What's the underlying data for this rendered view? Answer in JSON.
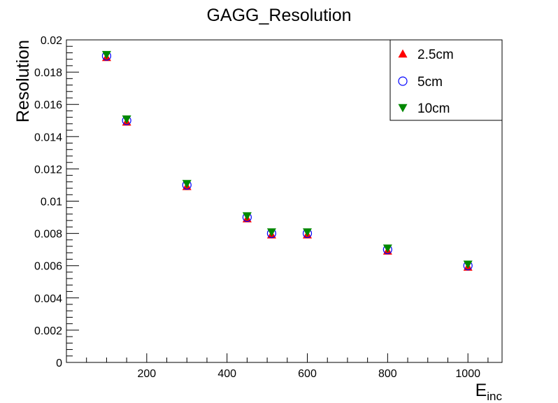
{
  "chart_data": {
    "type": "scatter",
    "title": "GAGG_Resolution",
    "xlabel": "E",
    "xlabel_subscript": "inc",
    "ylabel": "Resolution",
    "xlim": [
      0,
      1085
    ],
    "ylim": [
      0,
      0.02
    ],
    "x_ticks": [
      200,
      400,
      600,
      800,
      1000
    ],
    "x_tick_labels": [
      "200",
      "400",
      "600",
      "800",
      "1000"
    ],
    "y_ticks": [
      0,
      0.002,
      0.004,
      0.006,
      0.008,
      0.01,
      0.012,
      0.014,
      0.016,
      0.018,
      0.02
    ],
    "y_tick_labels": [
      "0",
      "0.002",
      "0.004",
      "0.006",
      "0.008",
      "0.01",
      "0.012",
      "0.014",
      "0.016",
      "0.018",
      "0.02"
    ],
    "grid": false,
    "legend_position": "top-right",
    "series": [
      {
        "name": "2.5cm",
        "marker": "triangle-up",
        "color": "#ff0000",
        "x": [
          100,
          150,
          300,
          450,
          511,
          600,
          800,
          1000
        ],
        "y": [
          0.019,
          0.015,
          0.011,
          0.009,
          0.008,
          0.008,
          0.007,
          0.006
        ]
      },
      {
        "name": "5cm",
        "marker": "open-circle",
        "color": "#0000ff",
        "x": [
          100,
          150,
          300,
          450,
          511,
          600,
          800,
          1000
        ],
        "y": [
          0.019,
          0.015,
          0.011,
          0.009,
          0.008,
          0.008,
          0.007,
          0.006
        ]
      },
      {
        "name": "10cm",
        "marker": "triangle-down",
        "color": "#008800",
        "x": [
          100,
          150,
          300,
          450,
          511,
          600,
          800,
          1000
        ],
        "y": [
          0.019,
          0.015,
          0.011,
          0.009,
          0.008,
          0.008,
          0.007,
          0.006
        ]
      }
    ]
  }
}
